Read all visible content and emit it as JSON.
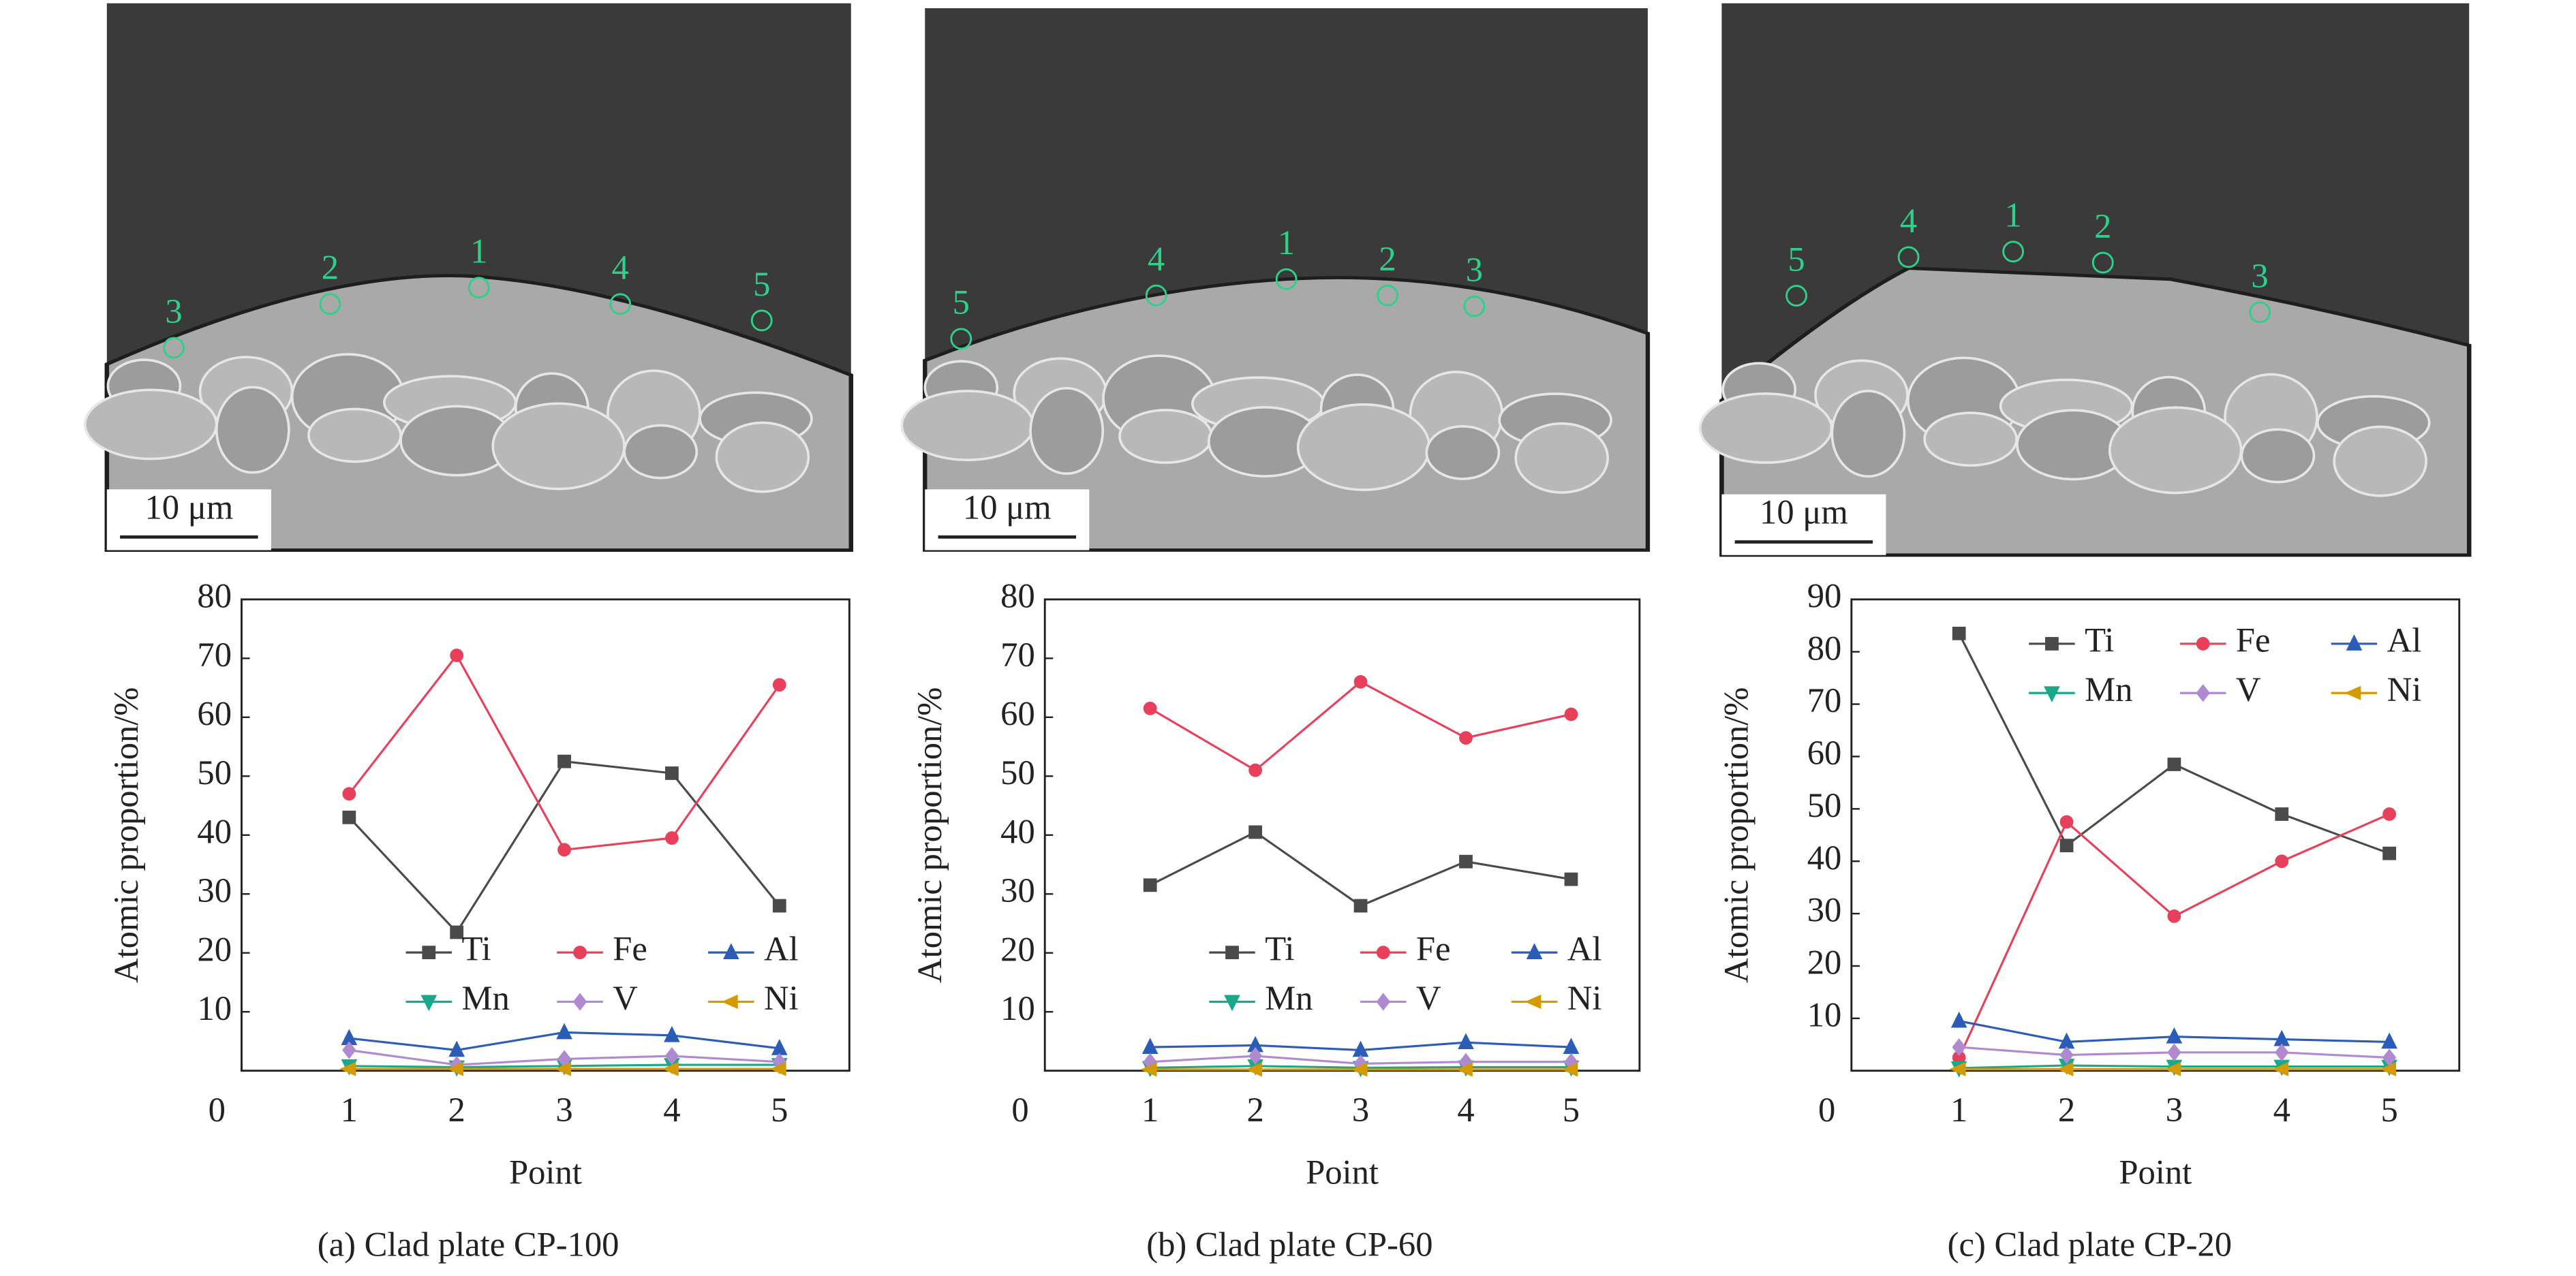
{
  "chart_data": [
    {
      "type": "line",
      "caption": "(a) Clad plate CP-100",
      "y_label": "Atomic proportion/%",
      "x_label": "Point",
      "micrograph": {
        "point_labels": [
          "1",
          "2",
          "3",
          "4",
          "5"
        ],
        "scale_bar": "10 μm"
      },
      "x": [
        1,
        2,
        3,
        4,
        5
      ],
      "xlim": [
        0,
        5.65
      ],
      "xticks": [
        0,
        1,
        2,
        3,
        4,
        5
      ],
      "ylim": [
        0,
        80
      ],
      "yticks": [
        10,
        20,
        30,
        40,
        50,
        60,
        70,
        80
      ],
      "legend": "lower center",
      "series": [
        {
          "name": "Ti",
          "color": "#4a4a4a",
          "marker": "square",
          "values": [
            43,
            23.5,
            52.5,
            50.5,
            28
          ]
        },
        {
          "name": "Fe",
          "color": "#e8405a",
          "marker": "circle",
          "values": [
            47,
            70.5,
            37.5,
            39.5,
            65.5
          ]
        },
        {
          "name": "Al",
          "color": "#2a5cb8",
          "marker": "triangle-up",
          "values": [
            5.5,
            3.5,
            6.5,
            6,
            3.8
          ]
        },
        {
          "name": "Mn",
          "color": "#1aa88a",
          "marker": "triangle-down",
          "values": [
            0.8,
            0.6,
            0.8,
            1,
            1
          ]
        },
        {
          "name": "V",
          "color": "#b08ad0",
          "marker": "diamond",
          "values": [
            3.5,
            1,
            2,
            2.5,
            1.5
          ]
        },
        {
          "name": "Ni",
          "color": "#d49a00",
          "marker": "triangle-left",
          "values": [
            0.3,
            0.3,
            0.3,
            0.3,
            0.3
          ]
        }
      ]
    },
    {
      "type": "line",
      "caption": "(b) Clad plate CP-60",
      "y_label": "Atomic proportion/%",
      "x_label": "Point",
      "micrograph": {
        "point_labels": [
          "1",
          "2",
          "3",
          "4",
          "5"
        ],
        "scale_bar": "10 μm"
      },
      "x": [
        1,
        2,
        3,
        4,
        5
      ],
      "xlim": [
        0,
        5.65
      ],
      "xticks": [
        0,
        1,
        2,
        3,
        4,
        5
      ],
      "ylim": [
        0,
        80
      ],
      "yticks": [
        10,
        20,
        30,
        40,
        50,
        60,
        70,
        80
      ],
      "legend": "lower center",
      "series": [
        {
          "name": "Ti",
          "color": "#4a4a4a",
          "marker": "square",
          "values": [
            31.5,
            40.5,
            28,
            35.5,
            32.5
          ]
        },
        {
          "name": "Fe",
          "color": "#e8405a",
          "marker": "circle",
          "values": [
            61.5,
            51,
            66,
            56.5,
            60.5
          ]
        },
        {
          "name": "Al",
          "color": "#2a5cb8",
          "marker": "triangle-up",
          "values": [
            4,
            4.3,
            3.5,
            4.8,
            4
          ]
        },
        {
          "name": "Mn",
          "color": "#1aa88a",
          "marker": "triangle-down",
          "values": [
            0.5,
            0.8,
            0.5,
            0.6,
            0.6
          ]
        },
        {
          "name": "V",
          "color": "#b08ad0",
          "marker": "diamond",
          "values": [
            1.5,
            2.5,
            1.2,
            1.5,
            1.5
          ]
        },
        {
          "name": "Ni",
          "color": "#d49a00",
          "marker": "triangle-left",
          "values": [
            0.2,
            0.2,
            0.2,
            0.2,
            0.2
          ]
        }
      ]
    },
    {
      "type": "line",
      "caption": "(c) Clad plate CP-20",
      "y_label": "Atomic proportion/%",
      "x_label": "Point",
      "micrograph": {
        "point_labels": [
          "1",
          "2",
          "3",
          "4",
          "5"
        ],
        "scale_bar": "10 μm"
      },
      "x": [
        1,
        2,
        3,
        4,
        5
      ],
      "xlim": [
        0,
        5.65
      ],
      "xticks": [
        0,
        1,
        2,
        3,
        4,
        5
      ],
      "ylim": [
        0,
        90
      ],
      "yticks": [
        10,
        20,
        30,
        40,
        50,
        60,
        70,
        80,
        90
      ],
      "legend": "upper right",
      "series": [
        {
          "name": "Ti",
          "color": "#4a4a4a",
          "marker": "square",
          "values": [
            83.5,
            43,
            58.5,
            49,
            41.5
          ]
        },
        {
          "name": "Fe",
          "color": "#e8405a",
          "marker": "circle",
          "values": [
            2.5,
            47.5,
            29.5,
            40,
            49
          ]
        },
        {
          "name": "Al",
          "color": "#2a5cb8",
          "marker": "triangle-up",
          "values": [
            9.5,
            5.5,
            6.5,
            6,
            5.5
          ]
        },
        {
          "name": "Mn",
          "color": "#1aa88a",
          "marker": "triangle-down",
          "values": [
            0.5,
            1,
            0.8,
            0.8,
            0.8
          ]
        },
        {
          "name": "V",
          "color": "#b08ad0",
          "marker": "diamond",
          "values": [
            4.5,
            3,
            3.5,
            3.5,
            2.5
          ]
        },
        {
          "name": "Ni",
          "color": "#d49a00",
          "marker": "triangle-left",
          "values": [
            0.3,
            0.3,
            0.3,
            0.3,
            0.3
          ]
        }
      ]
    }
  ]
}
